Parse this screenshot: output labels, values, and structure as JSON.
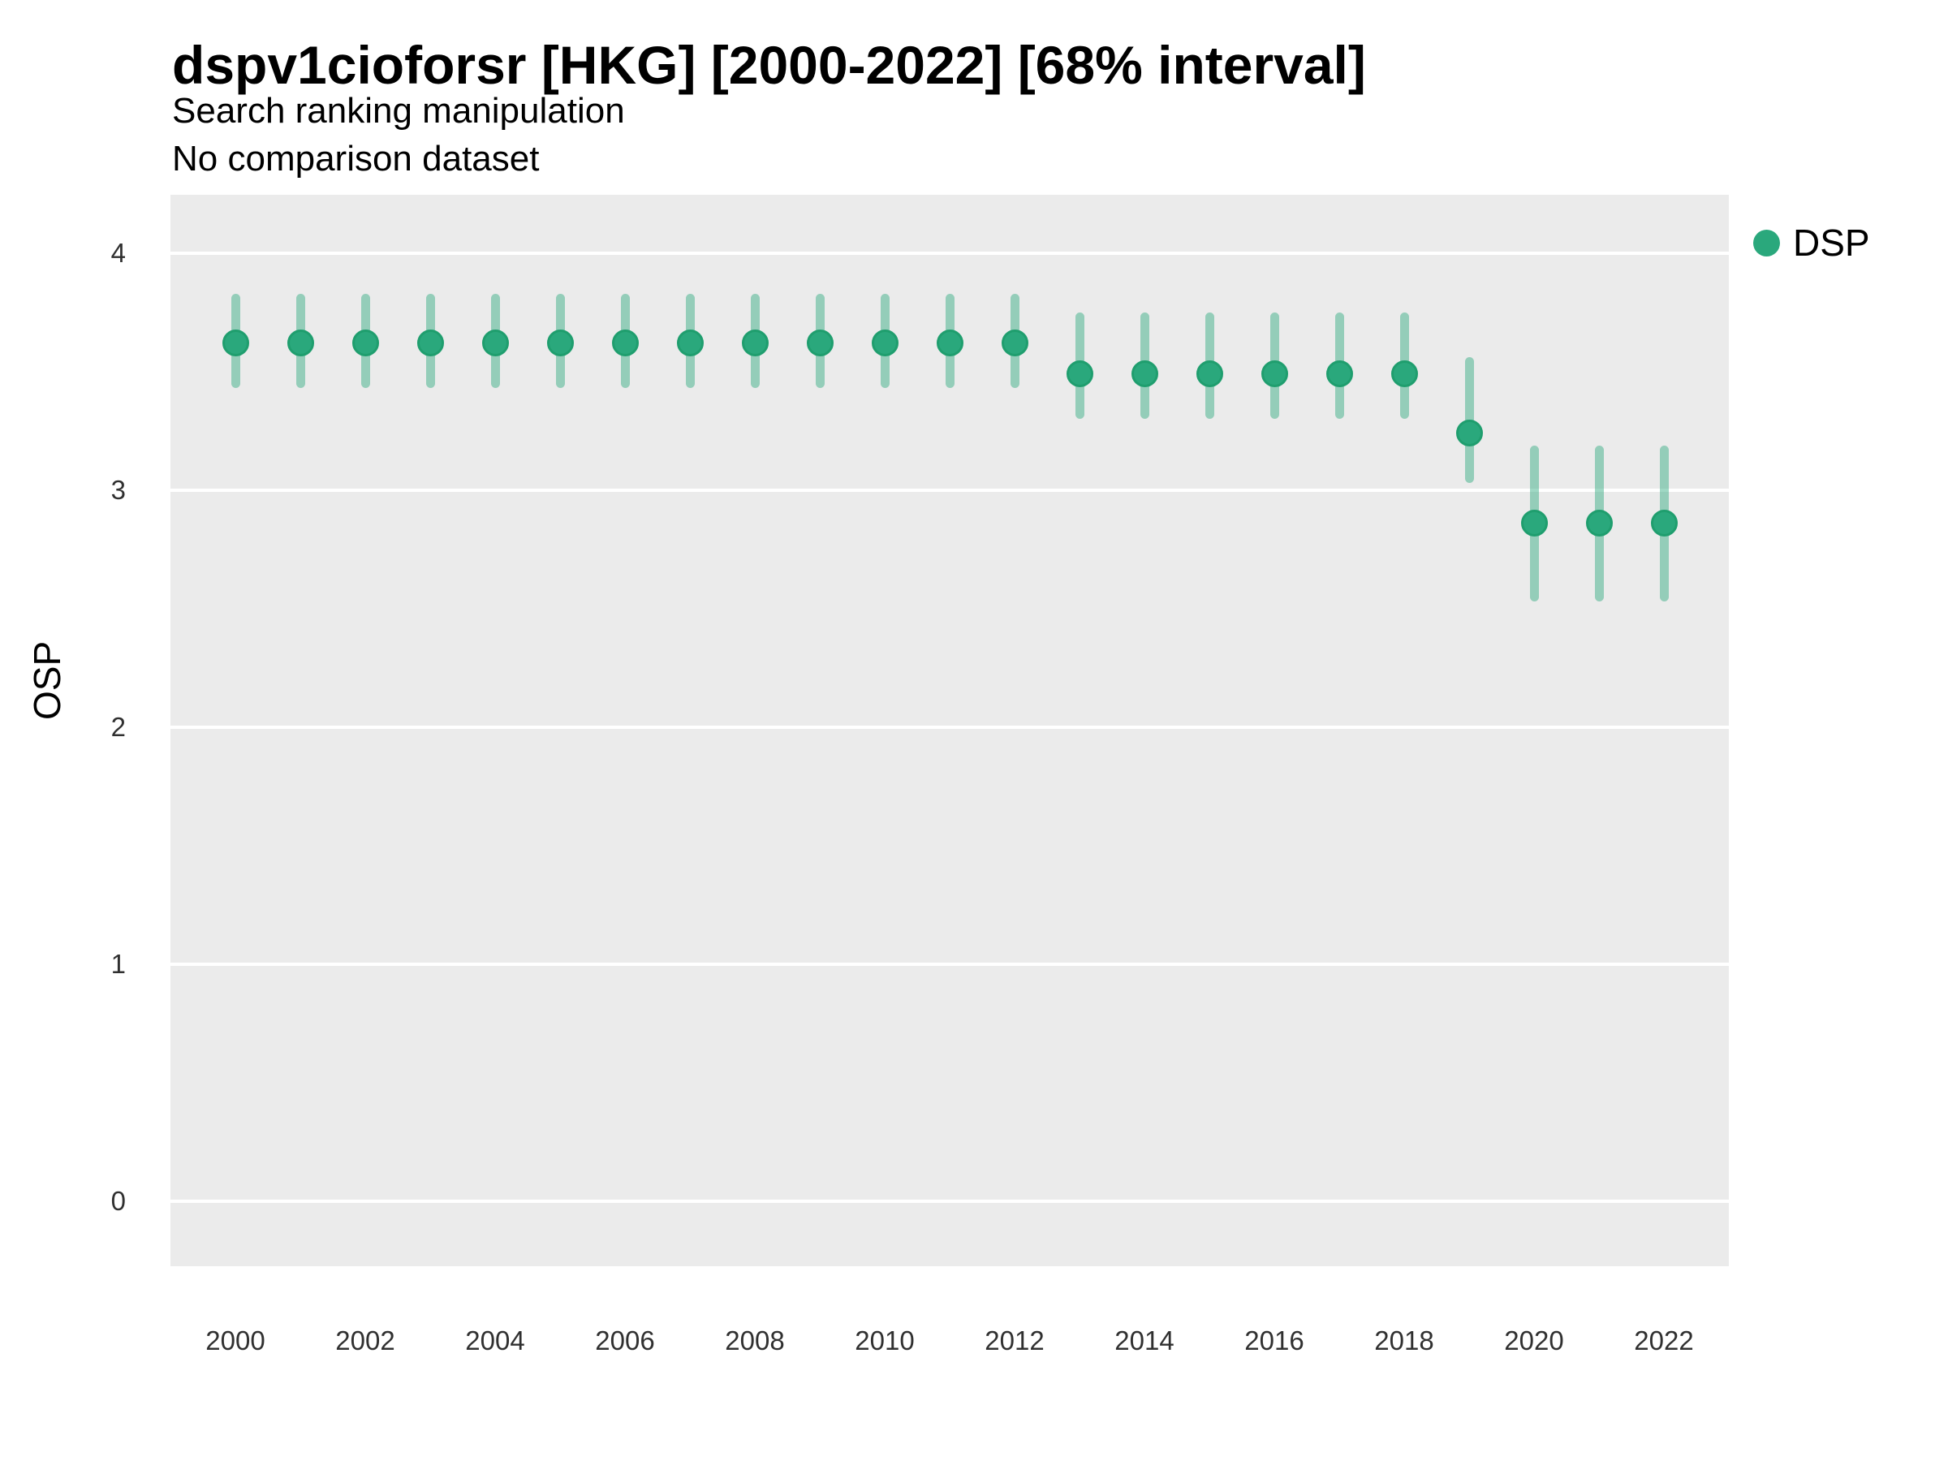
{
  "chart_data": {
    "type": "pointrange",
    "title": "dspv1cioforsr [HKG] [2000-2022] [68% interval]",
    "subtitle1": "Search ranking manipulation",
    "subtitle2": "No comparison dataset",
    "xlabel": "",
    "ylabel": "OSP",
    "interval_level": "68%",
    "x_tick_labels": [
      2000,
      2002,
      2004,
      2006,
      2008,
      2010,
      2012,
      2014,
      2016,
      2018,
      2020,
      2022
    ],
    "y_tick_labels": [
      0,
      1,
      2,
      3,
      4
    ],
    "xlim": [
      1999,
      2023
    ],
    "ylim": [
      -0.27,
      4.25
    ],
    "grid": "horizontal-major-only",
    "panel_background": "#ebebeb",
    "gridline_color": "#ffffff",
    "legend": {
      "position": "right-top",
      "entries": [
        {
          "label": "DSP",
          "color": "#2aa87c"
        }
      ]
    },
    "series": [
      {
        "name": "DSP",
        "point_color": "#2aa87c",
        "point_border_color": "#1f9e6e",
        "range_color": "rgba(42, 168, 124, 0.45)",
        "points": [
          {
            "x": 2000,
            "y": 3.62,
            "lo": 3.43,
            "hi": 3.83
          },
          {
            "x": 2001,
            "y": 3.62,
            "lo": 3.43,
            "hi": 3.83
          },
          {
            "x": 2002,
            "y": 3.62,
            "lo": 3.43,
            "hi": 3.83
          },
          {
            "x": 2003,
            "y": 3.62,
            "lo": 3.43,
            "hi": 3.83
          },
          {
            "x": 2004,
            "y": 3.62,
            "lo": 3.43,
            "hi": 3.83
          },
          {
            "x": 2005,
            "y": 3.62,
            "lo": 3.43,
            "hi": 3.83
          },
          {
            "x": 2006,
            "y": 3.62,
            "lo": 3.43,
            "hi": 3.83
          },
          {
            "x": 2007,
            "y": 3.62,
            "lo": 3.43,
            "hi": 3.83
          },
          {
            "x": 2008,
            "y": 3.62,
            "lo": 3.43,
            "hi": 3.83
          },
          {
            "x": 2009,
            "y": 3.62,
            "lo": 3.43,
            "hi": 3.83
          },
          {
            "x": 2010,
            "y": 3.62,
            "lo": 3.43,
            "hi": 3.83
          },
          {
            "x": 2011,
            "y": 3.62,
            "lo": 3.43,
            "hi": 3.83
          },
          {
            "x": 2012,
            "y": 3.62,
            "lo": 3.43,
            "hi": 3.83
          },
          {
            "x": 2013,
            "y": 3.49,
            "lo": 3.3,
            "hi": 3.75
          },
          {
            "x": 2014,
            "y": 3.49,
            "lo": 3.3,
            "hi": 3.75
          },
          {
            "x": 2015,
            "y": 3.49,
            "lo": 3.3,
            "hi": 3.75
          },
          {
            "x": 2016,
            "y": 3.49,
            "lo": 3.3,
            "hi": 3.75
          },
          {
            "x": 2017,
            "y": 3.49,
            "lo": 3.3,
            "hi": 3.75
          },
          {
            "x": 2018,
            "y": 3.49,
            "lo": 3.3,
            "hi": 3.75
          },
          {
            "x": 2019,
            "y": 3.24,
            "lo": 3.03,
            "hi": 3.56
          },
          {
            "x": 2020,
            "y": 2.86,
            "lo": 2.53,
            "hi": 3.19
          },
          {
            "x": 2021,
            "y": 2.86,
            "lo": 2.53,
            "hi": 3.19
          },
          {
            "x": 2022,
            "y": 2.86,
            "lo": 2.53,
            "hi": 3.19
          }
        ]
      }
    ]
  }
}
